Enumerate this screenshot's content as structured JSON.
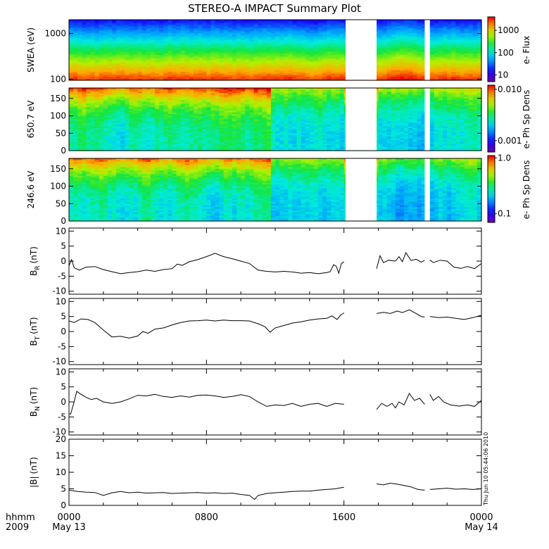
{
  "title": "STEREO-A IMPACT Summary Plot",
  "timestamp": "Thu Jun 10 05:44:06 2010",
  "colors": {
    "background": "#ffffff",
    "axis": "#000000",
    "gap": "#ffffff"
  },
  "time_axis": {
    "x_title_top": "hhmm",
    "x_title_bottom": "2009",
    "range_hours": [
      0,
      24
    ],
    "data_gaps_hours": [
      [
        16.1,
        17.9
      ],
      [
        20.7,
        21.0
      ]
    ],
    "ticks": [
      {
        "hour": 0,
        "label": "0000",
        "sublabel": "May 13"
      },
      {
        "hour": 8,
        "label": "0800",
        "sublabel": ""
      },
      {
        "hour": 16,
        "label": "1600",
        "sublabel": ""
      },
      {
        "hour": 24,
        "label": "0000",
        "sublabel": "May 14"
      }
    ]
  },
  "spectrograms": [
    {
      "name": "swea",
      "ylabel": "SWEA (eV)",
      "ylog": true,
      "ylim": [
        95,
        2000
      ],
      "yticks": [
        {
          "v": 100,
          "label": "100"
        },
        {
          "v": 1000,
          "label": "1000"
        }
      ],
      "colorbar": {
        "label": "e- Flux",
        "log": true,
        "range": [
          5,
          4000
        ],
        "ticks": [
          {
            "v": 10,
            "label": "10"
          },
          {
            "v": 100,
            "label": "100"
          },
          {
            "v": 1000,
            "label": "1000"
          }
        ]
      }
    },
    {
      "name": "pad-650",
      "ylabel": "650.7 eV",
      "ylog": false,
      "ylim": [
        0,
        180
      ],
      "yticks": [
        {
          "v": 0,
          "label": "0"
        },
        {
          "v": 50,
          "label": "50"
        },
        {
          "v": 100,
          "label": "100"
        },
        {
          "v": 150,
          "label": "150"
        }
      ],
      "colorbar": {
        "label": "e- Ph Sp Dens",
        "log": true,
        "range": [
          0.0006,
          0.012
        ],
        "ticks": [
          {
            "v": 0.001,
            "label": "0.001"
          },
          {
            "v": 0.01,
            "label": "0.010"
          }
        ]
      }
    },
    {
      "name": "pad-246",
      "ylabel": "246.6 eV",
      "ylog": false,
      "ylim": [
        0,
        180
      ],
      "yticks": [
        {
          "v": 0,
          "label": "0"
        },
        {
          "v": 50,
          "label": "50"
        },
        {
          "v": 100,
          "label": "100"
        },
        {
          "v": 150,
          "label": "150"
        }
      ],
      "colorbar": {
        "label": "e- Ph Sp Dens",
        "log": true,
        "range": [
          0.07,
          1.1
        ],
        "ticks": [
          {
            "v": 0.1,
            "label": "0.1"
          },
          {
            "v": 1.0,
            "label": "1.0"
          }
        ]
      }
    }
  ],
  "chart_data": [
    {
      "type": "line",
      "name": "BR",
      "ylabel": "B",
      "ylabel_sub": "R",
      "ylabel_unit": "(nT)",
      "ylim": [
        -11,
        11
      ],
      "yticks": [
        {
          "v": -10,
          "label": "-10"
        },
        {
          "v": -5,
          "label": "-5"
        },
        {
          "v": 0,
          "label": "0"
        },
        {
          "v": 5,
          "label": "5"
        },
        {
          "v": 10,
          "label": "10"
        }
      ],
      "series": [
        {
          "segments": [
            {
              "x": [
                0.0,
                0.15,
                0.3,
                0.6,
                1.0,
                1.5,
                2.0,
                2.5,
                3.0,
                3.5,
                4.0,
                4.5,
                5.0,
                5.5,
                6.0,
                6.3,
                6.6,
                7.0,
                7.5,
                8.0,
                8.5,
                9.0,
                9.5,
                10.0,
                10.5,
                11.0,
                11.5,
                12.0,
                12.5,
                13.0,
                13.5,
                14.0,
                14.5,
                15.0,
                15.2,
                15.4,
                15.55,
                15.7,
                15.85,
                16.0
              ],
              "y": [
                -1.5,
                0.5,
                -2.2,
                -3.0,
                -2.0,
                -1.8,
                -2.8,
                -3.5,
                -4.2,
                -3.8,
                -3.5,
                -3.0,
                -3.4,
                -2.8,
                -2.5,
                -1.0,
                -1.4,
                -0.2,
                0.5,
                1.5,
                2.6,
                1.5,
                0.8,
                0.0,
                -0.8,
                -3.0,
                -3.4,
                -3.6,
                -3.4,
                -3.6,
                -4.0,
                -3.8,
                -4.2,
                -3.8,
                -3.5,
                -1.2,
                -1.7,
                -4.0,
                -0.8,
                -0.2
              ]
            },
            {
              "x": [
                17.9,
                18.1,
                18.3,
                18.6,
                19.0,
                19.2,
                19.4,
                19.6,
                19.9,
                20.2,
                20.5,
                20.7
              ],
              "y": [
                -2.5,
                1.8,
                -0.5,
                0.3,
                0.0,
                1.5,
                -0.2,
                2.8,
                0.2,
                0.6,
                -0.3,
                0.2
              ]
            },
            {
              "x": [
                21.0,
                21.2,
                21.6,
                22.0,
                22.4,
                22.8,
                23.2,
                23.6,
                24.0
              ],
              "y": [
                0.4,
                -0.5,
                0.3,
                0.0,
                -2.0,
                -2.4,
                -1.8,
                -2.5,
                -0.8
              ]
            }
          ]
        }
      ]
    },
    {
      "type": "line",
      "name": "BT",
      "ylabel": "B",
      "ylabel_sub": "T",
      "ylabel_unit": "(nT)",
      "ylim": [
        -11,
        11
      ],
      "yticks": [
        {
          "v": -10,
          "label": "-10"
        },
        {
          "v": -5,
          "label": "-5"
        },
        {
          "v": 0,
          "label": "0"
        },
        {
          "v": 5,
          "label": "5"
        },
        {
          "v": 10,
          "label": "10"
        }
      ],
      "series": [
        {
          "segments": [
            {
              "x": [
                0.0,
                0.3,
                0.7,
                1.1,
                1.5,
                2.0,
                2.5,
                3.0,
                3.5,
                4.0,
                4.3,
                4.6,
                5.0,
                5.5,
                6.0,
                6.5,
                7.0,
                7.5,
                8.0,
                8.5,
                9.0,
                9.5,
                10.0,
                10.5,
                11.0,
                11.4,
                11.7,
                12.0,
                12.5,
                13.0,
                13.5,
                14.0,
                14.5,
                15.0,
                15.3,
                15.6,
                15.8,
                16.0
              ],
              "y": [
                3.5,
                3.0,
                4.2,
                4.0,
                3.0,
                0.5,
                -1.8,
                -1.6,
                -2.2,
                -1.5,
                0.0,
                -0.6,
                0.8,
                1.2,
                2.2,
                3.0,
                3.5,
                3.6,
                3.8,
                3.5,
                3.8,
                3.6,
                3.6,
                3.5,
                2.6,
                1.6,
                -0.2,
                1.2,
                2.0,
                2.8,
                3.2,
                3.8,
                4.2,
                4.4,
                5.2,
                4.0,
                5.4,
                6.2
              ]
            },
            {
              "x": [
                17.9,
                18.3,
                18.7,
                19.1,
                19.4,
                19.8,
                20.2,
                20.5,
                20.7
              ],
              "y": [
                6.0,
                6.4,
                6.0,
                6.8,
                6.3,
                7.2,
                6.0,
                5.0,
                4.8
              ]
            },
            {
              "x": [
                21.0,
                21.5,
                22.0,
                22.5,
                23.0,
                23.5,
                24.0
              ],
              "y": [
                5.0,
                4.6,
                4.8,
                4.4,
                4.0,
                4.6,
                5.4
              ]
            }
          ]
        }
      ]
    },
    {
      "type": "line",
      "name": "BN",
      "ylabel": "B",
      "ylabel_sub": "N",
      "ylabel_unit": "(nT)",
      "ylim": [
        -11,
        11
      ],
      "yticks": [
        {
          "v": -10,
          "label": "-10"
        },
        {
          "v": -5,
          "label": "-5"
        },
        {
          "v": 0,
          "label": "0"
        },
        {
          "v": 5,
          "label": "5"
        },
        {
          "v": 10,
          "label": "10"
        }
      ],
      "series": [
        {
          "segments": [
            {
              "x": [
                0.0,
                0.1,
                0.2,
                0.3,
                0.45,
                0.7,
                1.0,
                1.3,
                1.6,
                2.0,
                2.5,
                3.0,
                3.5,
                4.0,
                4.5,
                5.0,
                5.5,
                6.0,
                6.5,
                7.0,
                7.5,
                8.0,
                8.5,
                9.0,
                9.5,
                10.0,
                10.5,
                11.0,
                11.5,
                12.0,
                12.5,
                13.0,
                13.5,
                14.0,
                14.5,
                15.0,
                15.5,
                16.0
              ],
              "y": [
                -4.0,
                -4.0,
                -2.0,
                0.0,
                3.5,
                2.5,
                1.5,
                0.8,
                1.2,
                0.0,
                -0.5,
                0.0,
                1.0,
                2.2,
                2.0,
                2.5,
                1.8,
                1.5,
                2.0,
                1.6,
                2.2,
                2.3,
                2.0,
                1.5,
                1.8,
                2.4,
                1.8,
                0.0,
                -1.5,
                -1.0,
                -1.2,
                -0.5,
                -1.5,
                -0.8,
                -0.5,
                -1.5,
                -0.5,
                -0.8
              ]
            },
            {
              "x": [
                17.9,
                18.2,
                18.5,
                18.8,
                19.0,
                19.2,
                19.5,
                19.8,
                20.1,
                20.4,
                20.7
              ],
              "y": [
                -2.5,
                -0.5,
                -1.5,
                -0.5,
                -2.0,
                0.0,
                -1.0,
                2.8,
                0.5,
                1.2,
                -0.8
              ]
            },
            {
              "x": [
                21.0,
                21.2,
                21.5,
                21.8,
                22.2,
                22.7,
                23.2,
                23.6,
                24.0
              ],
              "y": [
                2.5,
                0.5,
                1.8,
                0.0,
                -1.0,
                -1.4,
                -1.0,
                -1.5,
                0.5
              ]
            }
          ]
        }
      ]
    },
    {
      "type": "line",
      "name": "Btot",
      "ylabel": "|B|",
      "ylabel_sub": "",
      "ylabel_unit": "(nT)",
      "ylim": [
        0,
        20
      ],
      "yticks": [
        {
          "v": 0,
          "label": "0"
        },
        {
          "v": 5,
          "label": "5"
        },
        {
          "v": 10,
          "label": "10"
        },
        {
          "v": 15,
          "label": "15"
        },
        {
          "v": 20,
          "label": "20"
        }
      ],
      "series": [
        {
          "segments": [
            {
              "x": [
                0.0,
                0.5,
                1.0,
                1.5,
                2.0,
                2.5,
                3.0,
                3.5,
                4.0,
                4.5,
                5.0,
                5.5,
                6.0,
                6.5,
                7.0,
                7.5,
                8.0,
                8.5,
                9.0,
                9.5,
                10.0,
                10.5,
                10.8,
                11.0,
                11.5,
                12.0,
                12.5,
                13.0,
                13.5,
                14.0,
                14.5,
                15.0,
                15.5,
                16.0
              ],
              "y": [
                4.6,
                4.2,
                4.0,
                3.9,
                3.0,
                3.8,
                4.2,
                3.8,
                4.0,
                3.7,
                3.8,
                3.9,
                3.6,
                3.7,
                3.8,
                3.9,
                3.7,
                3.8,
                3.6,
                3.7,
                3.3,
                3.0,
                1.8,
                3.0,
                3.6,
                3.8,
                4.0,
                4.2,
                4.3,
                4.3,
                4.6,
                4.8,
                5.0,
                5.5
              ]
            },
            {
              "x": [
                17.9,
                18.3,
                18.7,
                19.1,
                19.5,
                19.9,
                20.3,
                20.7
              ],
              "y": [
                6.5,
                6.2,
                6.7,
                6.4,
                6.0,
                5.6,
                4.8,
                4.6
              ]
            },
            {
              "x": [
                21.0,
                21.5,
                22.0,
                22.5,
                23.0,
                23.5,
                24.0
              ],
              "y": [
                4.8,
                5.0,
                5.2,
                4.9,
                5.0,
                4.8,
                5.0
              ]
            }
          ]
        }
      ]
    }
  ]
}
